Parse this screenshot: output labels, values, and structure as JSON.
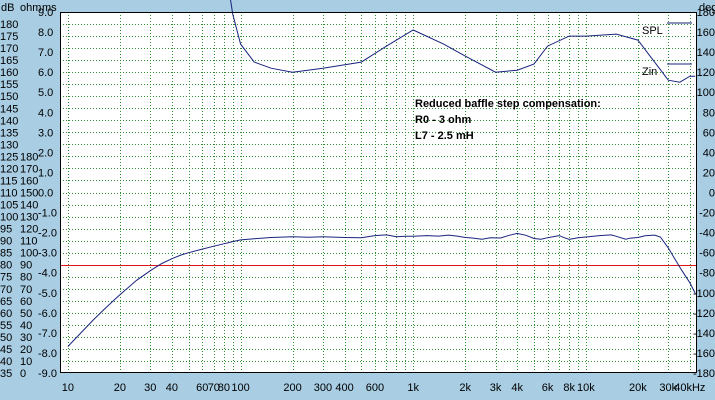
{
  "chart_data": {
    "type": "line",
    "units_header": {
      "db": "dB",
      "ohm": "ohm",
      "ms": "ms",
      "deg": "deg"
    },
    "x_axis": {
      "scale": "log",
      "range_hz": [
        9,
        44000
      ],
      "ticks": [
        {
          "v": 10,
          "label": "10"
        },
        {
          "v": 20,
          "label": "20"
        },
        {
          "v": 30,
          "label": "30"
        },
        {
          "v": 40,
          "label": "40"
        },
        {
          "v": 60,
          "label": "60"
        },
        {
          "v": 70,
          "label": "70"
        },
        {
          "v": 80,
          "label": "80"
        },
        {
          "v": 100,
          "label": "100"
        },
        {
          "v": 200,
          "label": "200"
        },
        {
          "v": 300,
          "label": "300"
        },
        {
          "v": 400,
          "label": "400"
        },
        {
          "v": 600,
          "label": "600"
        },
        {
          "v": 1000,
          "label": "1k"
        },
        {
          "v": 2000,
          "label": "2k"
        },
        {
          "v": 3000,
          "label": "3k"
        },
        {
          "v": 4000,
          "label": "4k"
        },
        {
          "v": 6000,
          "label": "6k"
        },
        {
          "v": 8000,
          "label": "8k"
        },
        {
          "v": 10000,
          "label": "10k"
        },
        {
          "v": 20000,
          "label": "20k"
        },
        {
          "v": 30000,
          "label": "30k"
        },
        {
          "v": 40000,
          "label": "40kHz"
        }
      ]
    },
    "y_axis_db": {
      "range": [
        35,
        185
      ],
      "ticks": [
        35,
        40,
        45,
        50,
        55,
        60,
        65,
        70,
        75,
        80,
        85,
        90,
        95,
        100,
        105,
        110,
        115,
        120,
        125,
        130,
        135,
        140,
        145,
        150,
        155,
        160,
        165,
        170,
        175,
        180
      ]
    },
    "y_axis_ohm": {
      "range": [
        0,
        18
      ],
      "ticks": [
        0,
        10,
        20,
        30,
        40,
        50,
        60,
        70,
        80,
        90,
        100,
        110,
        120,
        130,
        140,
        150,
        160,
        170,
        180
      ]
    },
    "y_axis_ms": {
      "range": [
        -9,
        9
      ],
      "labels": [
        "-9.0",
        "-8.0",
        "-7.0",
        "-6.0",
        "-5.0",
        "-4.0",
        "-3.0",
        "-2.0",
        "-1.0",
        "0.0",
        "1.0",
        "2.0",
        "3.0",
        "4.0",
        "5.0",
        "6.0",
        "7.0",
        "8.0",
        "9.0"
      ]
    },
    "y_axis_deg": {
      "range": [
        -180,
        180
      ],
      "labels": [
        "-180",
        "-160",
        "-140",
        "-120",
        "-100",
        "-80",
        "-60",
        "-40",
        "-20",
        "0",
        "20",
        "40",
        "60",
        "80",
        "100",
        "120",
        "140",
        "160",
        "180"
      ]
    },
    "reference_line_db": 80,
    "colors": {
      "background": "#a9cde3",
      "plot": "#ffffff",
      "grid": "#2e8b2e",
      "curve": "#1a237e",
      "reference": "#e0141e"
    },
    "grid": true,
    "legend_position": "top-right",
    "annotation": [
      "Reduced baffle step compensation:",
      "R0 - 3 ohm",
      "L7 - 2.5 mH"
    ],
    "series": [
      {
        "name": "SPL",
        "axis": "dB",
        "points": [
          [
            10,
            46
          ],
          [
            12,
            52
          ],
          [
            14,
            57
          ],
          [
            16,
            61
          ],
          [
            18,
            64.5
          ],
          [
            20,
            67.5
          ],
          [
            25,
            73.5
          ],
          [
            30,
            77.5
          ],
          [
            35,
            80.5
          ],
          [
            40,
            82.5
          ],
          [
            45,
            84
          ],
          [
            50,
            85
          ],
          [
            60,
            86.5
          ],
          [
            70,
            87.7
          ],
          [
            80,
            88.7
          ],
          [
            90,
            89.6
          ],
          [
            100,
            90.3
          ],
          [
            120,
            90.8
          ],
          [
            150,
            91.3
          ],
          [
            200,
            91.6
          ],
          [
            250,
            91.4
          ],
          [
            300,
            91.6
          ],
          [
            400,
            91.3
          ],
          [
            500,
            91.2
          ],
          [
            600,
            92.1
          ],
          [
            700,
            92.4
          ],
          [
            800,
            91.6
          ],
          [
            900,
            91.8
          ],
          [
            1000,
            91.8
          ],
          [
            1200,
            92.1
          ],
          [
            1400,
            91.9
          ],
          [
            1600,
            92.3
          ],
          [
            1800,
            91.9
          ],
          [
            2000,
            91.3
          ],
          [
            2200,
            91.1
          ],
          [
            2500,
            90.6
          ],
          [
            2800,
            91.2
          ],
          [
            3200,
            91.1
          ],
          [
            3600,
            92.2
          ],
          [
            4000,
            93.0
          ],
          [
            4500,
            92.2
          ],
          [
            5000,
            90.9
          ],
          [
            5500,
            90.6
          ],
          [
            6000,
            91.2
          ],
          [
            7000,
            92.1
          ],
          [
            7500,
            91.2
          ],
          [
            8000,
            90.5
          ],
          [
            9000,
            91.2
          ],
          [
            10000,
            91.5
          ],
          [
            12000,
            92.1
          ],
          [
            14000,
            92.4
          ],
          [
            15000,
            91.8
          ],
          [
            17000,
            90.6
          ],
          [
            18000,
            91.0
          ],
          [
            20000,
            91.3
          ],
          [
            22000,
            92.0
          ],
          [
            25000,
            92.3
          ],
          [
            27000,
            91.5
          ],
          [
            30000,
            87
          ],
          [
            33000,
            82
          ],
          [
            36000,
            77.5
          ],
          [
            40000,
            72.5
          ],
          [
            43000,
            68
          ]
        ]
      },
      {
        "name": "Zin",
        "axis": "ohm",
        "points": [
          [
            10,
            20
          ],
          [
            12,
            20.8
          ],
          [
            14,
            22
          ],
          [
            16,
            23.3
          ],
          [
            18,
            25.2
          ],
          [
            20,
            26.8
          ],
          [
            22,
            26.5
          ],
          [
            25,
            24.8
          ],
          [
            28,
            22.4
          ],
          [
            32,
            20.5
          ],
          [
            36,
            19.6
          ],
          [
            40,
            19.4
          ],
          [
            45,
            19.6
          ],
          [
            50,
            20.5
          ],
          [
            55,
            22.5
          ],
          [
            60,
            25.5
          ],
          [
            65,
            27.3
          ],
          [
            70,
            25.6
          ],
          [
            80,
            20.8
          ],
          [
            90,
            17.9
          ],
          [
            100,
            16.4
          ],
          [
            120,
            15.5
          ],
          [
            150,
            15.2
          ],
          [
            200,
            15.0
          ],
          [
            300,
            15.2
          ],
          [
            500,
            15.5
          ],
          [
            700,
            16.3
          ],
          [
            1000,
            17.1
          ],
          [
            1500,
            16.4
          ],
          [
            2000,
            15.8
          ],
          [
            3000,
            15.0
          ],
          [
            4000,
            15.1
          ],
          [
            5000,
            15.4
          ],
          [
            6000,
            16.3
          ],
          [
            8000,
            16.8
          ],
          [
            10000,
            16.8
          ],
          [
            15000,
            16.9
          ],
          [
            20000,
            16.6
          ],
          [
            25000,
            15.5
          ],
          [
            30000,
            14.6
          ],
          [
            35000,
            14.5
          ],
          [
            40000,
            14.8
          ],
          [
            43000,
            14.8
          ]
        ]
      }
    ]
  }
}
